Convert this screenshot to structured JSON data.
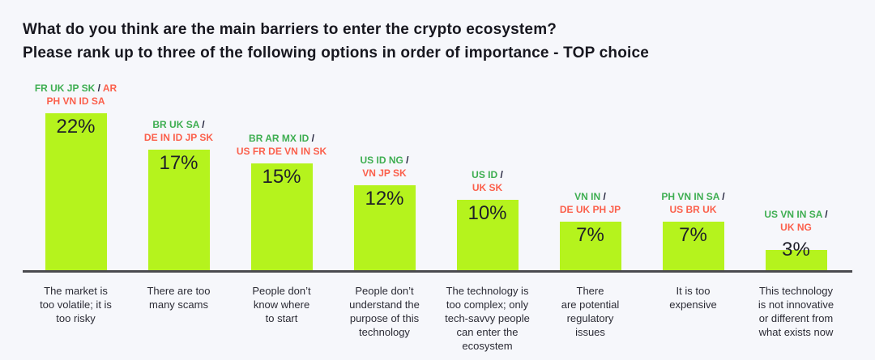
{
  "title": {
    "line1": "What do you think are the main barriers to enter the crypto ecosystem?",
    "line2": "Please rank up to three of the following options in order of importance - TOP choice"
  },
  "colors": {
    "background": "#f6f7fb",
    "bar": "#b5f31d",
    "green_codes": "#3eae51",
    "red_codes": "#fb604c",
    "slash": "#23233c",
    "value_text": "#1f1f29",
    "title_text": "#17171f",
    "category_text": "#2b2b35",
    "axis_line": "#4a4a4f"
  },
  "chart_data": {
    "type": "bar",
    "title": "What do you think are the main barriers to enter the crypto ecosystem? Please rank up to three of the following options in order of importance - TOP choice",
    "xlabel": "",
    "ylabel": "",
    "unit": "%",
    "ylim": [
      0,
      25
    ],
    "grid": false,
    "legend": false,
    "categories": [
      "The market is too volatile; it is too risky",
      "There are too many scams",
      "People don’t know where to start",
      "People don’t understand the purpose of this technology",
      "The technology is too complex; only tech-savvy people can enter the ecosystem",
      "There are potential regulatory issues",
      "It is too expensive",
      "This technology is not innovative or different from what exists now"
    ],
    "values": [
      22,
      17,
      15,
      12,
      10,
      7,
      7,
      3
    ],
    "value_labels": [
      "22%",
      "17%",
      "15%",
      "12%",
      "10%",
      "7%",
      "7%",
      "3%"
    ],
    "bars": [
      {
        "value": 22,
        "value_label": "22%",
        "code_lines": [
          [
            {
              "text": "FR UK JP SK ",
              "color": "green"
            },
            {
              "text": "/",
              "color": "slash"
            },
            {
              "text": " AR",
              "color": "red"
            }
          ],
          [
            {
              "text": "PH VN ID SA",
              "color": "red"
            }
          ]
        ],
        "category_lines": [
          "The market is",
          "too volatile; it is",
          "too risky"
        ]
      },
      {
        "value": 17,
        "value_label": "17%",
        "code_lines": [
          [
            {
              "text": "BR UK SA ",
              "color": "green"
            },
            {
              "text": "/",
              "color": "slash"
            }
          ],
          [
            {
              "text": "DE IN ID JP SK",
              "color": "red"
            }
          ]
        ],
        "category_lines": [
          "There are too",
          "many scams"
        ]
      },
      {
        "value": 15,
        "value_label": "15%",
        "code_lines": [
          [
            {
              "text": "BR AR MX ID ",
              "color": "green"
            },
            {
              "text": "/",
              "color": "slash"
            }
          ],
          [
            {
              "text": "US FR DE VN IN SK",
              "color": "red"
            }
          ]
        ],
        "category_lines": [
          "People don’t",
          "know where",
          "to start"
        ]
      },
      {
        "value": 12,
        "value_label": "12%",
        "code_lines": [
          [
            {
              "text": "US ID NG ",
              "color": "green"
            },
            {
              "text": "/",
              "color": "slash"
            }
          ],
          [
            {
              "text": "VN JP SK",
              "color": "red"
            }
          ]
        ],
        "category_lines": [
          "People don’t",
          "understand the",
          "purpose of this",
          "technology"
        ]
      },
      {
        "value": 10,
        "value_label": "10%",
        "code_lines": [
          [
            {
              "text": "US ID ",
              "color": "green"
            },
            {
              "text": "/",
              "color": "slash"
            }
          ],
          [
            {
              "text": "UK SK",
              "color": "red"
            }
          ]
        ],
        "category_lines": [
          "The technology is",
          "too complex; only",
          "tech-savvy people",
          "can enter the",
          "ecosystem"
        ]
      },
      {
        "value": 7,
        "value_label": "7%",
        "code_lines": [
          [
            {
              "text": "VN IN ",
              "color": "green"
            },
            {
              "text": "/",
              "color": "slash"
            }
          ],
          [
            {
              "text": "DE UK PH JP",
              "color": "red"
            }
          ]
        ],
        "category_lines": [
          "There",
          "are potential",
          "regulatory",
          "issues"
        ]
      },
      {
        "value": 7,
        "value_label": "7%",
        "code_lines": [
          [
            {
              "text": "PH VN IN SA ",
              "color": "green"
            },
            {
              "text": "/",
              "color": "slash"
            }
          ],
          [
            {
              "text": "US BR UK",
              "color": "red"
            }
          ]
        ],
        "category_lines": [
          "It is too",
          "expensive"
        ]
      },
      {
        "value": 3,
        "value_label": "3%",
        "code_lines": [
          [
            {
              "text": "US VN IN SA ",
              "color": "green"
            },
            {
              "text": "/",
              "color": "slash"
            }
          ],
          [
            {
              "text": "UK NG",
              "color": "red"
            }
          ]
        ],
        "category_lines": [
          "This technology",
          "is not innovative",
          "or different from",
          "what exists now"
        ]
      }
    ]
  }
}
